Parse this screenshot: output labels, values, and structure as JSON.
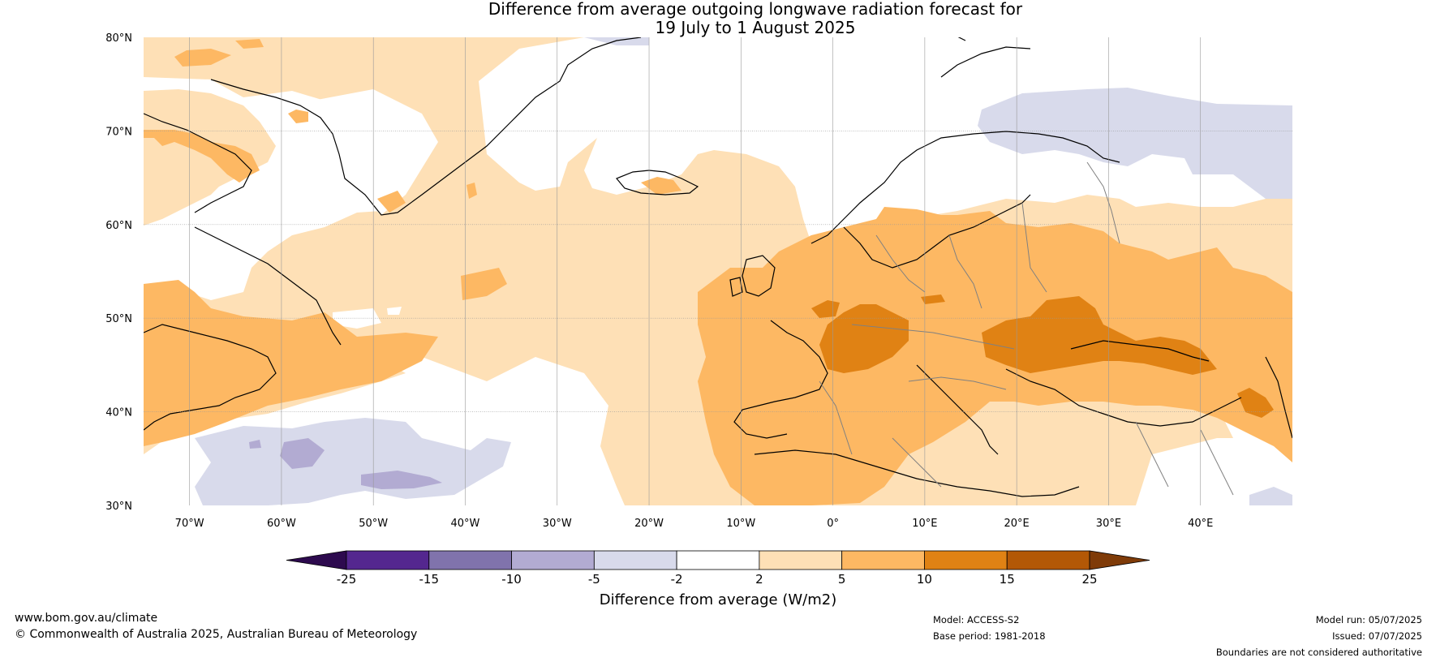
{
  "title": {
    "line1": "Difference from average outgoing longwave radiation forecast for",
    "line2": "19 July to 1 August 2025"
  },
  "map": {
    "lat_labels": [
      "80°N",
      "70°N",
      "60°N",
      "50°N",
      "40°N",
      "30°N"
    ],
    "lon_labels": [
      "70°W",
      "60°W",
      "50°W",
      "40°W",
      "30°W",
      "20°W",
      "10°W",
      "0°",
      "10°E",
      "20°E",
      "30°E",
      "40°E"
    ],
    "lat_range": [
      30,
      80
    ],
    "lon_range": [
      -75,
      50
    ]
  },
  "colorbar": {
    "ticks": [
      "-25",
      "-15",
      "-10",
      "-5",
      "-2",
      "2",
      "5",
      "10",
      "15",
      "25"
    ],
    "colors": [
      "#2d0a4e",
      "#54278f",
      "#8073ac",
      "#b2abd2",
      "#d8daeb",
      "#ffffff",
      "#fee0b6",
      "#fdb863",
      "#e08214",
      "#b35806",
      "#7f3b08"
    ],
    "label": "Difference from average (W/m2)"
  },
  "footer": {
    "website": "www.bom.gov.au/climate",
    "copyright": "© Commonwealth of Australia 2025, Australian Bureau of Meteorology",
    "model": "Model: ACCESS-S2",
    "base_period": "Base period: 1981-2018",
    "model_run": "Model run: 05/07/2025",
    "issued": "Issued: 07/07/2025",
    "disclaimer": "Boundaries are not considered authoritative"
  }
}
